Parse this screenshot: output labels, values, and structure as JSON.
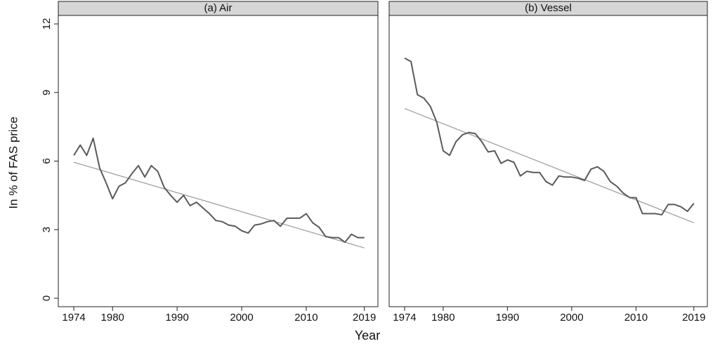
{
  "y_label": "In % of FAS price",
  "x_label": "Year",
  "chart_data": [
    {
      "type": "line",
      "title": "(a) Air",
      "x": [
        1974,
        1975,
        1976,
        1977,
        1978,
        1979,
        1980,
        1981,
        1982,
        1983,
        1984,
        1985,
        1986,
        1987,
        1988,
        1989,
        1990,
        1991,
        1992,
        1993,
        1994,
        1995,
        1996,
        1997,
        1998,
        1999,
        2000,
        2001,
        2002,
        2003,
        2004,
        2005,
        2006,
        2007,
        2008,
        2009,
        2010,
        2011,
        2012,
        2013,
        2014,
        2015,
        2016,
        2017,
        2018,
        2019
      ],
      "values": [
        6.25,
        6.7,
        6.25,
        7.0,
        5.7,
        5.05,
        4.35,
        4.9,
        5.05,
        5.45,
        5.8,
        5.3,
        5.8,
        5.55,
        4.85,
        4.5,
        4.2,
        4.5,
        4.05,
        4.2,
        3.95,
        3.7,
        3.4,
        3.35,
        3.2,
        3.15,
        2.95,
        2.85,
        3.2,
        3.25,
        3.35,
        3.4,
        3.15,
        3.5,
        3.5,
        3.5,
        3.7,
        3.3,
        3.1,
        2.7,
        2.65,
        2.65,
        2.45,
        2.8,
        2.65,
        2.65
      ],
      "color": "#5a5a5a",
      "fit_x": [
        1974,
        2019
      ],
      "fit_values": [
        5.95,
        2.2
      ],
      "fit_color": "#a0a0a0",
      "xlim": [
        1971.6,
        2021.1
      ],
      "ylim": [
        -0.37,
        12.37
      ],
      "xticks": [
        1974,
        1980,
        1990,
        2000,
        2010,
        2019
      ],
      "yticks": [
        0,
        3,
        6,
        9,
        12
      ]
    },
    {
      "type": "line",
      "title": "(b) Vessel",
      "x": [
        1974,
        1975,
        1976,
        1977,
        1978,
        1979,
        1980,
        1981,
        1982,
        1983,
        1984,
        1985,
        1986,
        1987,
        1988,
        1989,
        1990,
        1991,
        1992,
        1993,
        1994,
        1995,
        1996,
        1997,
        1998,
        1999,
        2000,
        2001,
        2002,
        2003,
        2004,
        2005,
        2006,
        2007,
        2008,
        2009,
        2010,
        2011,
        2012,
        2013,
        2014,
        2015,
        2016,
        2017,
        2018,
        2019
      ],
      "values": [
        10.5,
        10.35,
        8.9,
        8.75,
        8.4,
        7.7,
        6.45,
        6.25,
        6.85,
        7.15,
        7.25,
        7.2,
        6.85,
        6.4,
        6.45,
        5.9,
        6.05,
        5.95,
        5.35,
        5.55,
        5.5,
        5.5,
        5.1,
        4.95,
        5.35,
        5.3,
        5.3,
        5.25,
        5.15,
        5.65,
        5.75,
        5.55,
        5.1,
        4.9,
        4.6,
        4.4,
        4.4,
        3.7,
        3.7,
        3.7,
        3.65,
        4.1,
        4.1,
        4.0,
        3.8,
        4.15
      ],
      "color": "#5a5a5a",
      "fit_x": [
        1974,
        2019
      ],
      "fit_values": [
        8.3,
        3.3
      ],
      "fit_color": "#a0a0a0",
      "xlim": [
        1971.6,
        2021.1
      ],
      "ylim": [
        -0.37,
        12.37
      ],
      "xticks": [
        1974,
        1980,
        1990,
        2000,
        2010,
        2019
      ]
    }
  ]
}
